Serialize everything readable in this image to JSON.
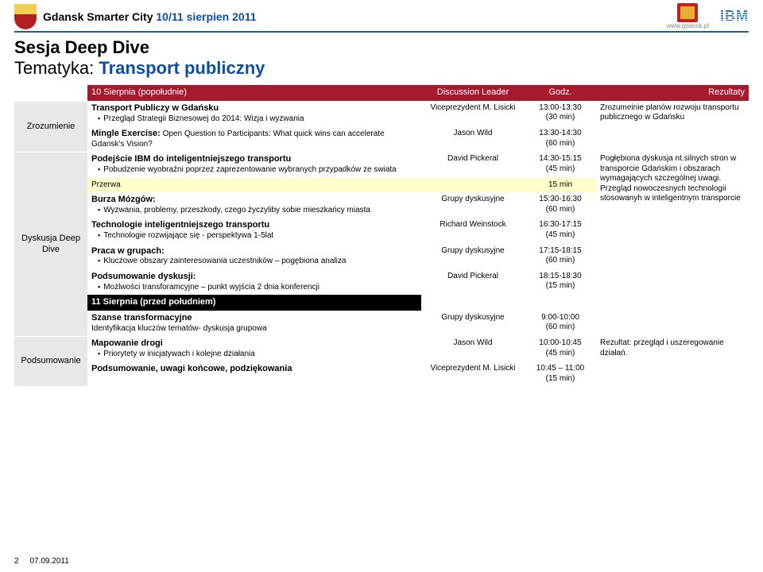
{
  "header": {
    "title_prefix": "Gdansk Smarter City ",
    "title_date": "10/11 sierpien 2011",
    "gdansk_caption": "www.gdansk.pl",
    "ibm": "IBM"
  },
  "titles": {
    "line1": "Sesja Deep Dive",
    "line2_prefix": "Tematyka: ",
    "line2_topic": "Transport publiczny"
  },
  "columns": {
    "col1_row1": "10 Sierpnia (popołudnie)",
    "col2": "Discussion Leader",
    "col3": "Godz.",
    "col4": "Rezultaty"
  },
  "sections": {
    "zrozumienie": "Zrozumienie",
    "dyskusja": "Dyskusja Deep Dive",
    "podsumowanie": "Podsumowanie"
  },
  "rows": {
    "r1": {
      "title": "Transport Publiczy w Gdańsku",
      "bullet": "Przegląd Strategii Biznesowej do 2014: Wizja i wyzwania",
      "leader": "Viceprezydent M. Lisicki",
      "time": "13:00-13:30\n(30 min)"
    },
    "r2": {
      "title": "Mingle Exercise:",
      "rest": " Open Question to Participants: What quick wins can accelerate Gdansk's Vision?",
      "leader": "Jason Wild",
      "time": "13:30-14:30\n(60 min)"
    },
    "res1": "Zrozumeinie planów rozwoju transportu publicznego w Gdańsku",
    "r3": {
      "title": "Podejście IBM do inteligentniejszego transportu",
      "bullet": "Pobudzenie wyobraźni poprzez zaprezentowanie wybranych przypadków ze swiata",
      "leader": "David Pickeral",
      "time": "14:30-15:15\n(45 min)"
    },
    "przerwa": {
      "label": "Przerwa",
      "time": "15 min"
    },
    "r4": {
      "title": "Burza Mózgów:",
      "bullet": "Wyzwania, problemy, przeszkody, czego życzyliby sobie mieszkańcy miasta",
      "leader": "Grupy dyskusyjne",
      "time": "15:30-16:30\n(60 min)"
    },
    "r5": {
      "title": "Technologie inteligentniejszego transportu",
      "bullet": "Technologie rozwijające się - perspektywa 1-5lat",
      "leader": "Richard Weinstock",
      "time": "16:30-17:15\n(45 min)"
    },
    "r6": {
      "title": "Praca w grupach:",
      "bullet": "Kluczowe obszary zainteresowania uczestników – pogębiona analiza",
      "leader": "Grupy dyskusyjne",
      "time": "17:15-18:15\n(60 min)"
    },
    "r7": {
      "title": "Podsumowanie dyskusji:",
      "bullet": "Możlwości transforamcyjne – punkt wyjścia 2 dnia konferencji",
      "leader": "David Pickeral",
      "time": "18:15-18:30\n(15 min)"
    },
    "day2": "11 Sierpnia (przed południem)",
    "r8": {
      "title": "Szanse transformacyjne",
      "sub": "Identyfikacja kluczów tematów- dyskusja grupowa",
      "leader": "Grupy dyskusyjne",
      "time": "9:00-10:00\n(60 min)"
    },
    "res2": "Pogłębiona dyskusja nt.silnych stron w transporcie Gdańskim i obszarach wymagających szczególnej uwagi. Przegląd nowoczesnych technologii stosowanyh w inteligentnym transporcie",
    "r9": {
      "title": "Mapowanie drogi",
      "bullet": "Priorytety w inicjatywach i kolejne działania",
      "leader": "Jason Wild",
      "time": "10:00-10:45\n(45 min)"
    },
    "r10": {
      "title": "Podsumowanie, uwagi końcowe, podziękowania",
      "leader": "Viceprezydent M. Lisicki",
      "time": "10:45 – 11:00\n(15 min)"
    },
    "res3": "Rezultat: przegląd i uszeregowanie działań."
  },
  "footer": {
    "page": "2",
    "date": "07.09.2011"
  }
}
